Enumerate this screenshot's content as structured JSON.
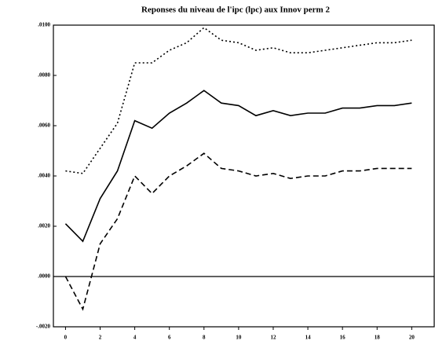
{
  "chart_data": {
    "type": "line",
    "title": "Reponses du niveau de l'ipc (lpc) aux Innov perm 2",
    "x": [
      0,
      1,
      2,
      3,
      4,
      5,
      6,
      7,
      8,
      9,
      10,
      11,
      12,
      13,
      14,
      15,
      16,
      17,
      18,
      19,
      20
    ],
    "series": [
      {
        "color": "#000000",
        "dash": "solid",
        "values": [
          0.0021,
          0.0014,
          0.0031,
          0.0042,
          0.0062,
          0.0059,
          0.0065,
          0.0069,
          0.0074,
          0.0069,
          0.0068,
          0.0064,
          0.0066,
          0.0064,
          0.0065,
          0.0065,
          0.0067,
          0.0067,
          0.0068,
          0.0068,
          0.0069
        ]
      },
      {
        "color": "#000000",
        "dash": "dotted",
        "values": [
          0.0042,
          0.0041,
          0.0051,
          0.0061,
          0.0085,
          0.0085,
          0.009,
          0.0093,
          0.0099,
          0.0094,
          0.0093,
          0.009,
          0.0091,
          0.0089,
          0.0089,
          0.009,
          0.0091,
          0.0092,
          0.0093,
          0.0093,
          0.0094
        ]
      },
      {
        "color": "#000000",
        "dash": "dashed",
        "values": [
          0.0,
          -0.0013,
          0.0013,
          0.0023,
          0.004,
          0.0033,
          0.004,
          0.0044,
          0.0049,
          0.0043,
          0.0042,
          0.004,
          0.0041,
          0.0039,
          0.004,
          0.004,
          0.0042,
          0.0042,
          0.0043,
          0.0043,
          0.0043
        ]
      }
    ],
    "xlim": [
      -0.7,
      21.3
    ],
    "xticks": [
      0,
      2,
      4,
      6,
      8,
      10,
      12,
      14,
      16,
      18,
      20
    ],
    "ylim": [
      -0.002,
      0.01
    ],
    "yticks": [
      {
        "value": -0.002,
        "label": "-.0020"
      },
      {
        "value": 0,
        "label": ".0000"
      },
      {
        "value": 0.002,
        "label": ".0020"
      },
      {
        "value": 0.004,
        "label": ".0040"
      },
      {
        "value": 0.006,
        "label": ".0060"
      },
      {
        "value": 0.008,
        "label": ".0080"
      },
      {
        "value": 0.01,
        "label": ".0100"
      }
    ],
    "zero_line": true
  }
}
